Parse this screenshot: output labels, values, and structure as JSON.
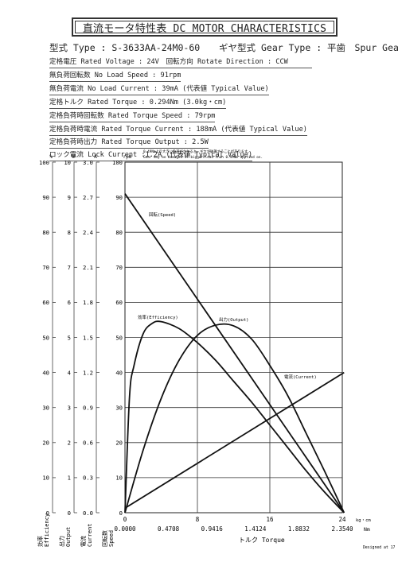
{
  "header": {
    "title": "直流モータ特性表 DC MOTOR CHARACTERISTICS",
    "model_label": "型式 Type : S-3633AA-24M0-60",
    "gear_label": "ギヤ型式 Gear Type : 平歯　Spur Gear"
  },
  "specs": [
    "定格電圧 Rated Voltage : 24V　回転方向 Rotate Direction : CCW",
    "無負荷回転数 No Load Speed : 91rpm",
    "無負荷電流 No Load Current : 39mA (代表値 Typical Value)",
    "定格トルク Rated Torque : 0.294Nm (3.0kg・cm)",
    "定格負荷時回転数 Rated Torque Speed : 79rpm",
    "定格負荷時電流 Rated Torque Current : 188mA (代表値 Typical Value)",
    "定格負荷時出力 Rated Torque Output : 2.5W",
    "ロック電流 Lock Current :1.2A (代表値 Typical Value)"
  ],
  "warning": {
    "jp": "0.49Nmより大きい負荷がかかると、ギヤが破損することがあります。",
    "en": "Gear may be damaged if bigger load than 0.49Nm applied on."
  },
  "footer_note": "Designed at 17",
  "chart_data": {
    "type": "line",
    "x_axis": {
      "label": "トルク Torque",
      "unit_kgcm": "kg・cm",
      "unit_nm": "Nm",
      "range_kgcm": [
        0,
        24
      ],
      "ticks_kgcm": [
        "0",
        "8",
        "16",
        "24"
      ],
      "ticks_nm": [
        "0.0000",
        "0.4708",
        "0.9416",
        "1.4124",
        "1.8832",
        "2.3540"
      ]
    },
    "y_axes": {
      "speed": {
        "unit": "rpm",
        "label": "回転数 Speed",
        "range": [
          0,
          100
        ],
        "ticks": [
          "0",
          "10",
          "20",
          "30",
          "40",
          "50",
          "60",
          "70",
          "80",
          "90",
          "100"
        ]
      },
      "efficiency": {
        "unit": "%",
        "label": "効率 Efficiency",
        "ticks": [
          "0",
          "10",
          "20",
          "30",
          "40",
          "50",
          "60",
          "70",
          "80",
          "90",
          "100"
        ]
      },
      "output": {
        "unit": "W",
        "label": "出力 Output",
        "ticks": [
          "0",
          "1",
          "2",
          "3",
          "4",
          "5",
          "6",
          "7",
          "8",
          "9",
          "10"
        ]
      },
      "current": {
        "unit": "A",
        "label": "電流 Current",
        "ticks": [
          "0.0",
          "0.3",
          "0.6",
          "0.9",
          "1.2",
          "1.5",
          "1.8",
          "2.1",
          "2.4",
          "2.7",
          "3.0"
        ]
      }
    },
    "grid": true,
    "series": [
      {
        "name": "回転(Speed)",
        "unit": "rpm",
        "x": [
          0,
          24.2
        ],
        "y": [
          91,
          0
        ]
      },
      {
        "name": "電流(Current)",
        "unit": "A",
        "x": [
          0,
          24.2
        ],
        "y": [
          0.039,
          1.2
        ]
      },
      {
        "name": "出力(Output)",
        "unit": "W",
        "x": [
          0,
          2,
          4,
          6,
          8,
          10,
          12,
          14,
          16,
          18,
          20,
          22,
          24.2
        ],
        "y": [
          0,
          1.78,
          3.26,
          4.36,
          5.06,
          5.35,
          5.33,
          4.95,
          4.2,
          3.33,
          2.27,
          1.21,
          0
        ]
      },
      {
        "name": "効率(Efficiency)",
        "unit": "%",
        "x": [
          0,
          0.5,
          1,
          2,
          3,
          4,
          6,
          8,
          10,
          12,
          14,
          16,
          18,
          20,
          22,
          24.2
        ],
        "y": [
          0,
          33,
          42,
          51,
          54,
          54.5,
          52.5,
          48.5,
          43.5,
          37.5,
          31.5,
          25,
          18.5,
          12,
          6,
          0
        ]
      }
    ]
  }
}
